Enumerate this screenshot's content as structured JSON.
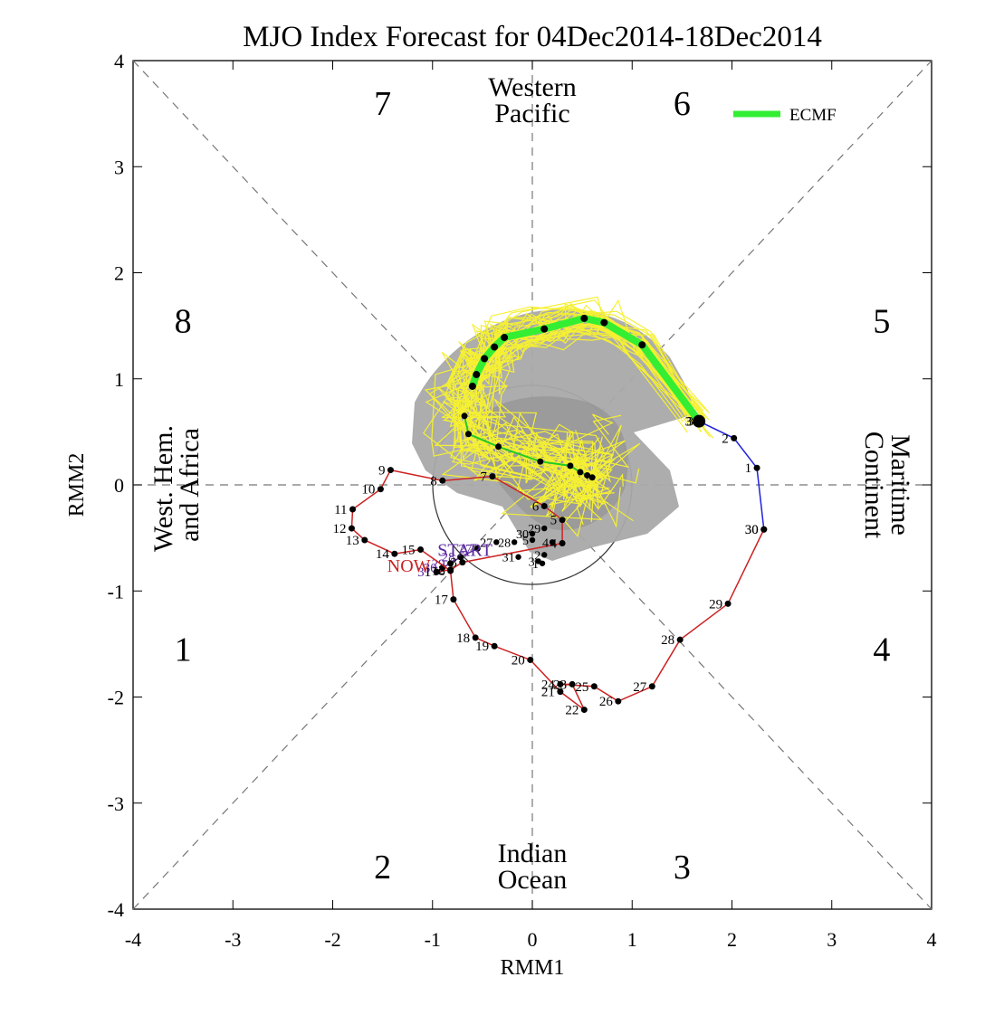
{
  "chart_data": {
    "type": "scatter",
    "title": "MJO Index Forecast for 04Dec2014-18Dec2014",
    "xlabel": "RMM1",
    "ylabel": "RMM2",
    "xlim": [
      -4,
      4
    ],
    "ylim": [
      -4,
      4
    ],
    "xticks": [
      "-4",
      "-3",
      "-2",
      "-1",
      "0",
      "1",
      "2",
      "3",
      "4"
    ],
    "yticks": [
      "-4",
      "-3",
      "-2",
      "-1",
      "0",
      "1",
      "2",
      "3",
      "4"
    ],
    "phase_numbers": [
      {
        "label": "1",
        "x": -3.5,
        "y": -1.55
      },
      {
        "label": "2",
        "x": -1.5,
        "y": -3.6
      },
      {
        "label": "3",
        "x": 1.5,
        "y": -3.6
      },
      {
        "label": "4",
        "x": 3.5,
        "y": -1.55
      },
      {
        "label": "5",
        "x": 3.5,
        "y": 1.55
      },
      {
        "label": "6",
        "x": 1.5,
        "y": 3.6
      },
      {
        "label": "7",
        "x": -1.5,
        "y": 3.6
      },
      {
        "label": "8",
        "x": -3.5,
        "y": 1.55
      }
    ],
    "regions": {
      "top": [
        "Western",
        "Pacific"
      ],
      "bottom": [
        "Indian",
        "Ocean"
      ],
      "left": [
        "West. Hem.",
        "and Africa"
      ],
      "right": [
        "Maritime",
        "Continent"
      ]
    },
    "legend": {
      "label": "ECMF",
      "color": "#33ee33",
      "position": "top-right"
    },
    "colors": {
      "observed_oct": "#5b2aa0",
      "observed_nov": "#cc2222",
      "observed_dec": "#2222dd",
      "ensemble": "#f5f032",
      "spread": "#a9a9a9",
      "ensemble_mean": "#33ee33",
      "small_mean": "#22cc22",
      "marker": "#000000"
    },
    "start_label": "START",
    "start_label_pos": {
      "x": -0.95,
      "y": -0.67
    },
    "now_label": "NOW",
    "now_label_pos": {
      "x": -1.0,
      "y": -0.82
    },
    "observed_october": [
      {
        "label": "27",
        "x": -0.55,
        "y": -0.6
      },
      {
        "label": "28",
        "x": -0.72,
        "y": -0.68
      },
      {
        "label": "29",
        "x": -0.82,
        "y": -0.74
      },
      {
        "label": "30",
        "x": -0.9,
        "y": -0.78
      },
      {
        "label": "31",
        "x": -0.96,
        "y": -0.82
      }
    ],
    "observed_november": [
      {
        "label": "1",
        "x": -0.96,
        "y": -0.82
      },
      {
        "label": "2",
        "x": -0.82,
        "y": -0.8
      },
      {
        "label": "3",
        "x": -0.7,
        "y": -0.73
      },
      {
        "label": "4",
        "x": 0.3,
        "y": -0.55
      },
      {
        "label": "5",
        "x": 0.3,
        "y": -0.33
      },
      {
        "label": "6",
        "x": 0.12,
        "y": -0.2
      },
      {
        "label": "7",
        "x": -0.4,
        "y": 0.08
      },
      {
        "label": "8",
        "x": -0.9,
        "y": 0.04
      },
      {
        "label": "9",
        "x": -1.42,
        "y": 0.14
      },
      {
        "label": "10",
        "x": -1.52,
        "y": -0.04
      },
      {
        "label": "11",
        "x": -1.8,
        "y": -0.23
      },
      {
        "label": "12",
        "x": -1.81,
        "y": -0.41
      },
      {
        "label": "13",
        "x": -1.68,
        "y": -0.52
      },
      {
        "label": "14",
        "x": -1.38,
        "y": -0.65
      },
      {
        "label": "15",
        "x": -1.12,
        "y": -0.61
      },
      {
        "label": "16",
        "x": -0.82,
        "y": -0.81
      },
      {
        "label": "17",
        "x": -0.79,
        "y": -1.08
      },
      {
        "label": "18",
        "x": -0.57,
        "y": -1.44
      },
      {
        "label": "19",
        "x": -0.38,
        "y": -1.52
      },
      {
        "label": "20",
        "x": -0.02,
        "y": -1.65
      },
      {
        "label": "21",
        "x": 0.28,
        "y": -1.95
      },
      {
        "label": "22",
        "x": 0.52,
        "y": -2.12
      },
      {
        "label": "23",
        "x": 0.4,
        "y": -1.88
      },
      {
        "label": "24",
        "x": 0.28,
        "y": -1.88
      },
      {
        "label": "25",
        "x": 0.62,
        "y": -1.9
      },
      {
        "label": "26",
        "x": 0.86,
        "y": -2.04
      },
      {
        "label": "27",
        "x": 1.2,
        "y": -1.9
      },
      {
        "label": "28",
        "x": 1.48,
        "y": -1.46
      },
      {
        "label": "29",
        "x": 1.96,
        "y": -1.12
      },
      {
        "label": "30",
        "x": 2.32,
        "y": -0.42
      }
    ],
    "observed_december": [
      {
        "label": "30",
        "x": 2.32,
        "y": -0.42
      },
      {
        "label": "1",
        "x": 2.25,
        "y": 0.16
      },
      {
        "label": "2",
        "x": 2.02,
        "y": 0.44
      },
      {
        "label": "3",
        "x": 1.67,
        "y": 0.6
      }
    ],
    "october_labels": [
      {
        "label": "27",
        "x": -0.36,
        "y": -0.54
      },
      {
        "label": "28",
        "x": -0.18,
        "y": -0.54
      },
      {
        "label": "29",
        "x": 0.12,
        "y": -0.41
      },
      {
        "label": "30",
        "x": 0.0,
        "y": -0.46
      },
      {
        "label": "31",
        "x": -0.14,
        "y": -0.68
      },
      {
        "label": "1",
        "x": 0.1,
        "y": -0.74
      },
      {
        "label": "2",
        "x": 0.12,
        "y": -0.66
      },
      {
        "label": "3",
        "x": 0.06,
        "y": -0.72
      },
      {
        "label": "4",
        "x": 0.2,
        "y": -0.54
      },
      {
        "label": "5",
        "x": 0.0,
        "y": -0.52
      }
    ],
    "ensemble_mean": [
      {
        "x": 1.67,
        "y": 0.6
      },
      {
        "x": 1.1,
        "y": 1.32
      },
      {
        "x": 0.72,
        "y": 1.53
      },
      {
        "x": 0.52,
        "y": 1.57
      },
      {
        "x": 0.12,
        "y": 1.47
      },
      {
        "x": -0.28,
        "y": 1.39
      },
      {
        "x": -0.38,
        "y": 1.3
      },
      {
        "x": -0.48,
        "y": 1.19
      },
      {
        "x": -0.56,
        "y": 1.04
      },
      {
        "x": -0.6,
        "y": 0.93
      }
    ],
    "small_mean": [
      {
        "x": -0.68,
        "y": 0.65
      },
      {
        "x": -0.64,
        "y": 0.48
      },
      {
        "x": -0.34,
        "y": 0.36
      },
      {
        "x": 0.08,
        "y": 0.22
      },
      {
        "x": 0.38,
        "y": 0.18
      },
      {
        "x": 0.48,
        "y": 0.12
      },
      {
        "x": 0.55,
        "y": 0.09
      },
      {
        "x": 0.6,
        "y": 0.07
      }
    ]
  }
}
